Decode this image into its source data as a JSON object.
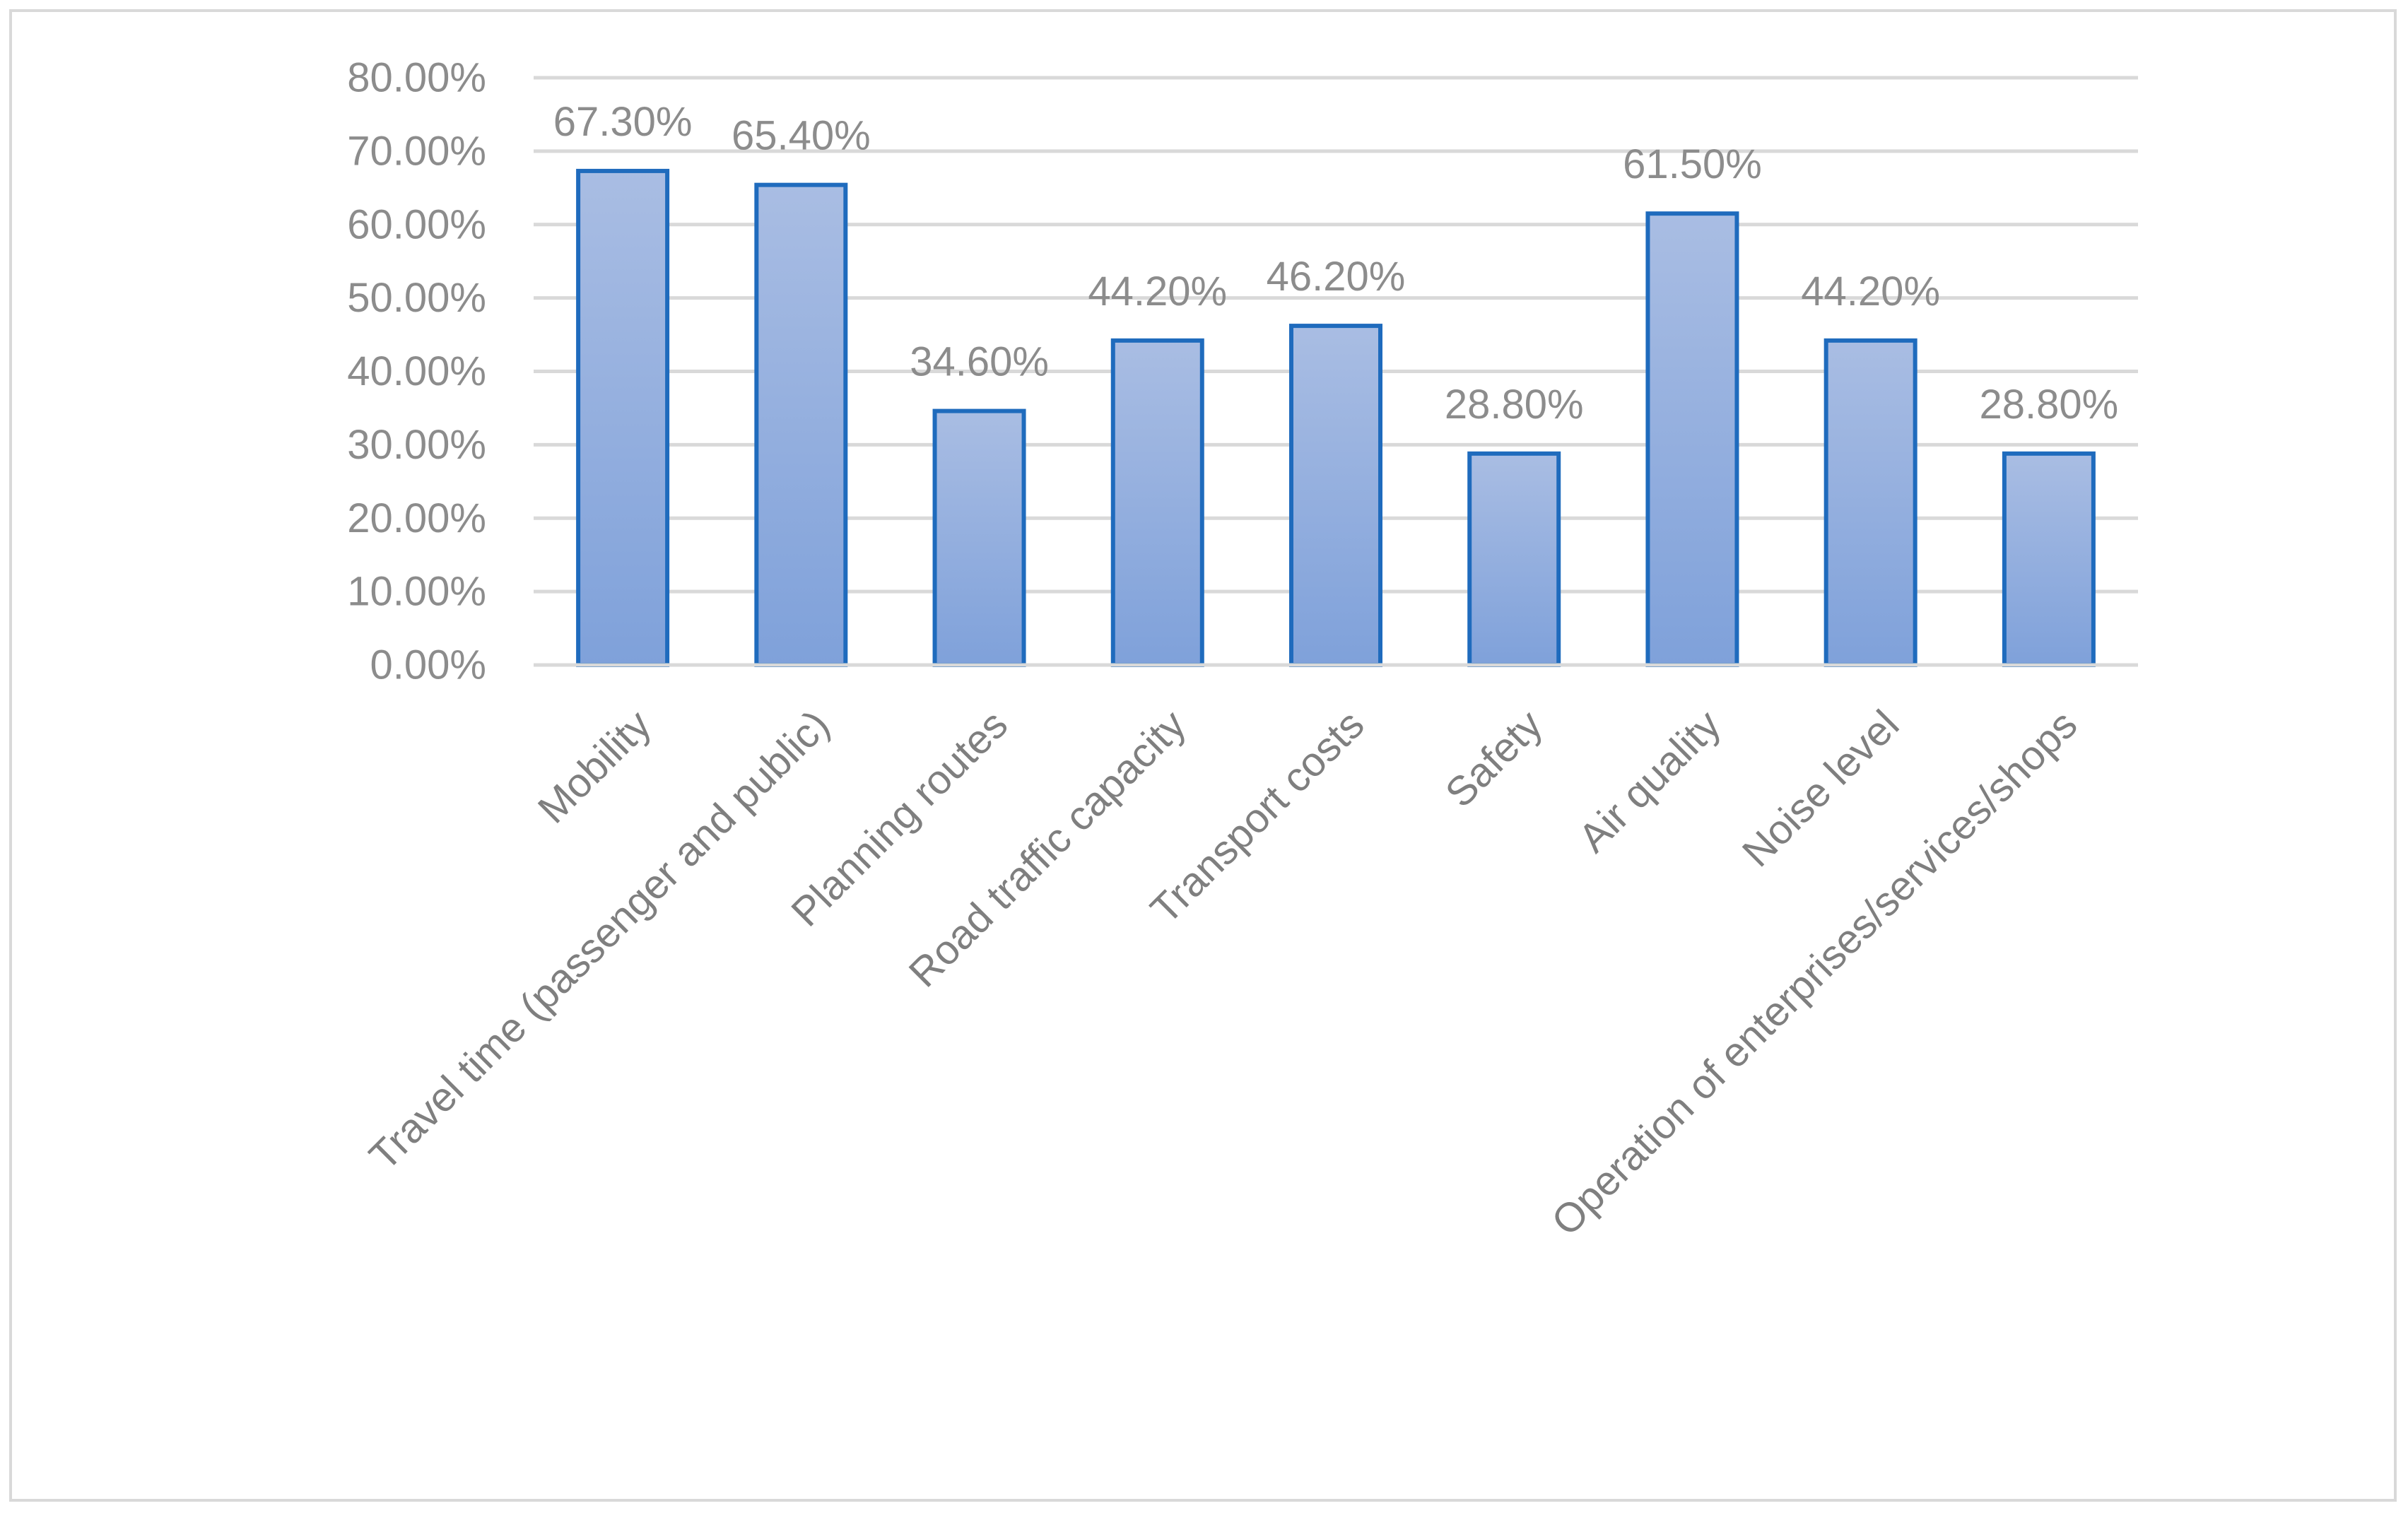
{
  "chart_data": {
    "type": "bar",
    "title": "",
    "xlabel": "",
    "ylabel": "",
    "categories": [
      "Mobility",
      "Travel time (passenger and public)",
      "Planning routes",
      "Road traffic capacity",
      "Transport costs",
      "Safety",
      "Air quality",
      "Noise level",
      "Operation of enterprises/services/shops"
    ],
    "values": [
      67.3,
      65.4,
      34.6,
      44.2,
      46.2,
      28.8,
      61.5,
      44.2,
      28.8
    ],
    "data_labels": [
      "67.30%",
      "65.40%",
      "34.60%",
      "44.20%",
      "46.20%",
      "28.80%",
      "61.50%",
      "44.20%",
      "28.80%"
    ],
    "ylim": [
      0,
      80
    ],
    "y_ticks": [
      0,
      10,
      20,
      30,
      40,
      50,
      60,
      70,
      80
    ],
    "y_tick_labels": [
      "0.00%",
      "10.00%",
      "20.00%",
      "30.00%",
      "40.00%",
      "50.00%",
      "60.00%",
      "70.00%",
      "80.00%"
    ],
    "grid": true,
    "legend": "none",
    "colors": {
      "bar_fill_top": "#a9bde3",
      "bar_fill_bottom": "#7fa1da",
      "bar_border": "#1f6bbd",
      "gridline": "#d9d9d9",
      "text": "#8c8c8c"
    }
  }
}
